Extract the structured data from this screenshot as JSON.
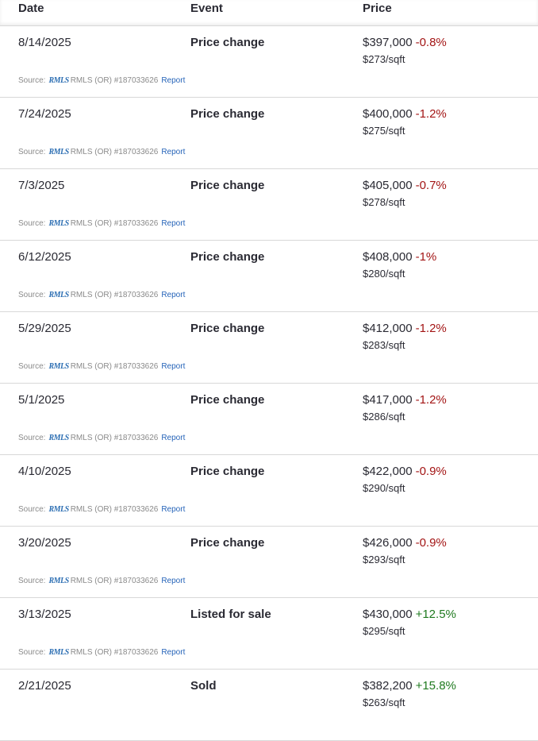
{
  "header": {
    "date": "Date",
    "event": "Event",
    "price": "Price"
  },
  "source": {
    "label": "Source:",
    "logo": "RMLS",
    "mls": "RMLS (OR) #187033626",
    "report": "Report"
  },
  "colors": {
    "negative": "#a31515",
    "positive": "#1f7a1f",
    "link": "#2563b8"
  },
  "rows": [
    {
      "date": "8/14/2025",
      "event": "Price change",
      "price": "$397,000",
      "change": "-0.8%",
      "direction": "neg",
      "sqft": "$273/sqft"
    },
    {
      "date": "7/24/2025",
      "event": "Price change",
      "price": "$400,000",
      "change": "-1.2%",
      "direction": "neg",
      "sqft": "$275/sqft"
    },
    {
      "date": "7/3/2025",
      "event": "Price change",
      "price": "$405,000",
      "change": "-0.7%",
      "direction": "neg",
      "sqft": "$278/sqft"
    },
    {
      "date": "6/12/2025",
      "event": "Price change",
      "price": "$408,000",
      "change": "-1%",
      "direction": "neg",
      "sqft": "$280/sqft"
    },
    {
      "date": "5/29/2025",
      "event": "Price change",
      "price": "$412,000",
      "change": "-1.2%",
      "direction": "neg",
      "sqft": "$283/sqft"
    },
    {
      "date": "5/1/2025",
      "event": "Price change",
      "price": "$417,000",
      "change": "-1.2%",
      "direction": "neg",
      "sqft": "$286/sqft"
    },
    {
      "date": "4/10/2025",
      "event": "Price change",
      "price": "$422,000",
      "change": "-0.9%",
      "direction": "neg",
      "sqft": "$290/sqft"
    },
    {
      "date": "3/20/2025",
      "event": "Price change",
      "price": "$426,000",
      "change": "-0.9%",
      "direction": "neg",
      "sqft": "$293/sqft"
    },
    {
      "date": "3/13/2025",
      "event": "Listed for sale",
      "price": "$430,000",
      "change": "+12.5%",
      "direction": "pos",
      "sqft": "$295/sqft"
    },
    {
      "date": "2/21/2025",
      "event": "Sold",
      "price": "$382,200",
      "change": "+15.8%",
      "direction": "pos",
      "sqft": "$263/sqft"
    }
  ]
}
